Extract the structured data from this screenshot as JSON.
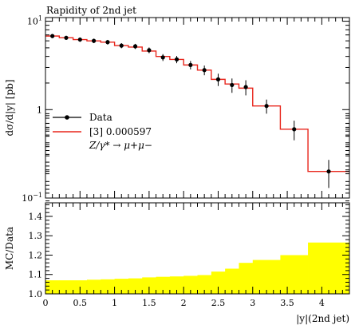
{
  "chart_data": [
    {
      "type": "line",
      "title": "Rapidity of 2nd jet",
      "ylabel": "dσ/d|y| [pb]",
      "xlabel": "",
      "yscale": "log",
      "xlim": [
        0,
        4.4
      ],
      "ylim": [
        0.1,
        11
      ],
      "y_tick_labels": [
        {
          "value": 10,
          "base": "10",
          "exp": "1"
        },
        {
          "value": 1,
          "base": "1",
          "exp": ""
        },
        {
          "value": 0.1,
          "base": "10",
          "exp": "−1"
        }
      ],
      "legend": {
        "position": "middle-left",
        "entries": [
          {
            "label": "Data",
            "color": "#000000",
            "marker": "dot"
          },
          {
            "label": "[3] 0.000597",
            "color": "#e8261c",
            "marker": "line"
          }
        ],
        "note": "Z/γ* → μ+μ−"
      },
      "series": [
        {
          "name": "Data",
          "x": [
            0.1,
            0.3,
            0.5,
            0.7,
            0.9,
            1.1,
            1.3,
            1.5,
            1.7,
            1.9,
            2.1,
            2.3,
            2.5,
            2.7,
            2.9,
            3.2,
            3.6,
            4.1
          ],
          "y": [
            6.8,
            6.5,
            6.2,
            6.0,
            5.8,
            5.3,
            5.2,
            4.7,
            3.9,
            3.7,
            3.2,
            2.8,
            2.2,
            1.9,
            1.8,
            1.1,
            0.6,
            0.2
          ],
          "yerr": [
            0.35,
            0.35,
            0.35,
            0.35,
            0.35,
            0.35,
            0.35,
            0.35,
            0.35,
            0.35,
            0.35,
            0.35,
            0.35,
            0.35,
            0.35,
            0.2,
            0.15,
            0.07
          ]
        },
        {
          "name": "[3] 0.000597",
          "type": "step",
          "bin_edges": [
            0,
            0.2,
            0.4,
            0.6,
            0.8,
            1.0,
            1.2,
            1.4,
            1.6,
            1.8,
            2.0,
            2.2,
            2.4,
            2.6,
            2.8,
            3.0,
            3.4,
            3.8,
            4.4
          ],
          "values": [
            6.8,
            6.5,
            6.2,
            6.0,
            5.8,
            5.3,
            5.1,
            4.6,
            4.0,
            3.7,
            3.2,
            2.8,
            2.2,
            1.95,
            1.75,
            1.1,
            0.6,
            0.2
          ]
        }
      ]
    },
    {
      "type": "area",
      "xlabel": "|y|(2nd jet)",
      "ylabel": "MC/Data",
      "xlim": [
        0,
        4.4
      ],
      "ylim": [
        1.0,
        1.47
      ],
      "x_ticks": [
        0,
        0.5,
        1,
        1.5,
        2,
        2.5,
        3,
        3.5,
        4
      ],
      "y_ticks": [
        1.0,
        1.1,
        1.2,
        1.3,
        1.4
      ],
      "band_color": "#ffff00",
      "series": [
        {
          "name": "",
          "type": "step",
          "bin_edges": [
            0,
            0.2,
            0.4,
            0.6,
            0.8,
            1.0,
            1.2,
            1.4,
            1.6,
            1.8,
            2.0,
            2.2,
            2.4,
            2.6,
            2.8,
            3.0,
            3.4,
            3.8,
            4.4
          ],
          "lower": [
            1.0,
            1.0,
            1.0,
            1.0,
            1.0,
            1.0,
            1.0,
            1.0,
            1.0,
            1.0,
            1.0,
            1.0,
            1.0,
            1.0,
            1.0,
            1.0,
            1.0,
            1.0
          ],
          "upper": [
            1.07,
            1.07,
            1.07,
            1.073,
            1.075,
            1.078,
            1.08,
            1.085,
            1.088,
            1.09,
            1.093,
            1.097,
            1.115,
            1.13,
            1.16,
            1.175,
            1.2,
            1.265
          ]
        }
      ]
    }
  ]
}
